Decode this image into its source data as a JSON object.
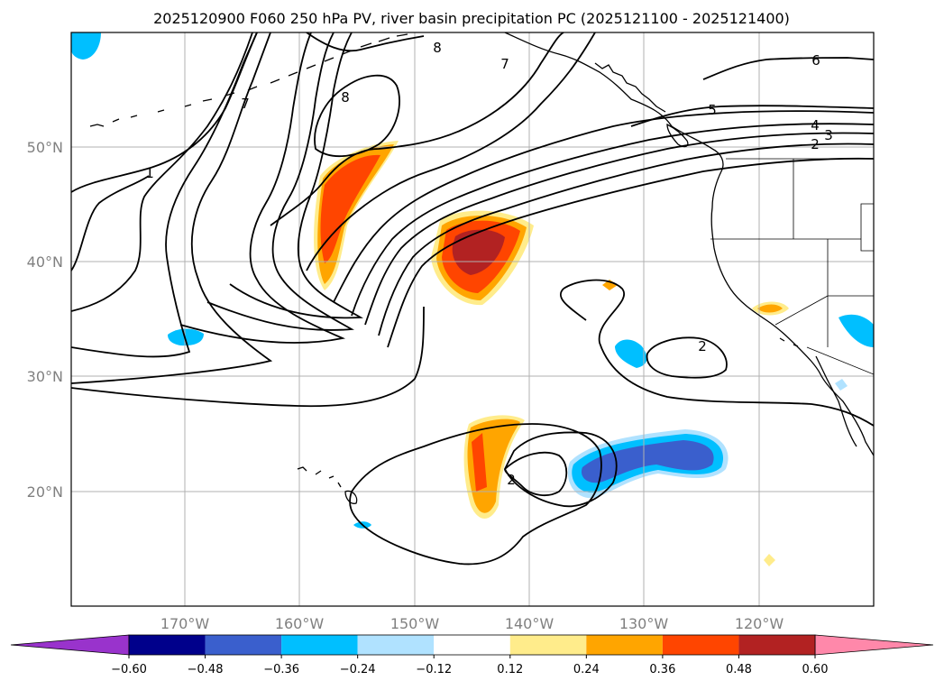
{
  "title": "2025120900 F060 250 hPa PV, river basin precipitation PC (2025121100 - 2025121400)",
  "axes": {
    "lon_ticks": [
      "170°W",
      "160°W",
      "150°W",
      "140°W",
      "130°W",
      "120°W"
    ],
    "lat_ticks": [
      "50°N",
      "40°N",
      "30°N",
      "20°N"
    ]
  },
  "colorbar": {
    "ticks": [
      "−0.60",
      "−0.48",
      "−0.36",
      "−0.24",
      "−0.12",
      "0.12",
      "0.24",
      "0.36",
      "0.48",
      "0.60"
    ],
    "colors": [
      "#9933cc",
      "#00008b",
      "#3a5fcd",
      "#00bfff",
      "#b0e2ff",
      "#ffffff",
      "#ffec8b",
      "#ffa500",
      "#ff4500",
      "#b22222",
      "#ff88aa"
    ],
    "min_tick": -0.6,
    "max_tick": 0.6,
    "extend": "both"
  },
  "contour_labels": [
    {
      "text": "8"
    },
    {
      "text": "8"
    },
    {
      "text": "7"
    },
    {
      "text": "7"
    },
    {
      "text": "1"
    },
    {
      "text": "6"
    },
    {
      "text": "5"
    },
    {
      "text": "4"
    },
    {
      "text": "3"
    },
    {
      "text": "2"
    },
    {
      "text": "2"
    },
    {
      "text": "2"
    }
  ]
}
